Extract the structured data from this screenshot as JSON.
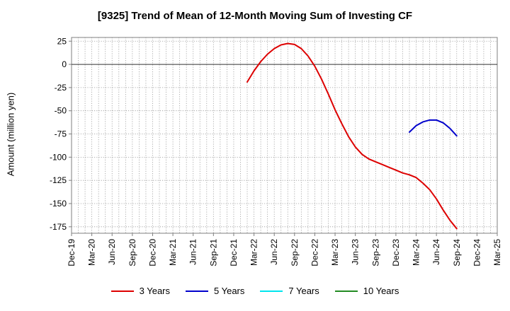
{
  "chart_data": {
    "type": "line",
    "title": "[9325]  Trend of Mean of 12-Month Moving Sum of Investing CF",
    "ylabel": "Amount (million yen)",
    "xlabel": "",
    "ylim": [
      -182,
      29
    ],
    "y_ticks": [
      25,
      0,
      -25,
      -50,
      -75,
      -100,
      -125,
      -150,
      -175
    ],
    "x_tick_labels": [
      "Dec-19",
      "Mar-20",
      "Jun-20",
      "Sep-20",
      "Dec-20",
      "Mar-21",
      "Jun-21",
      "Sep-21",
      "Dec-21",
      "Mar-22",
      "Jun-22",
      "Sep-22",
      "Dec-22",
      "Mar-23",
      "Jun-23",
      "Sep-23",
      "Dec-23",
      "Mar-24",
      "Jun-24",
      "Sep-24",
      "Dec-24",
      "Mar-25"
    ],
    "grid": true,
    "legend_position": "bottom",
    "series": [
      {
        "name": "3 Years",
        "color": "#dd0000",
        "points": [
          [
            "Feb-22",
            -19
          ],
          [
            "Mar-22",
            -7
          ],
          [
            "Apr-22",
            3
          ],
          [
            "May-22",
            11
          ],
          [
            "Jun-22",
            17
          ],
          [
            "Jul-22",
            21
          ],
          [
            "Aug-22",
            22.5
          ],
          [
            "Sep-22",
            21.5
          ],
          [
            "Oct-22",
            17
          ],
          [
            "Nov-22",
            9
          ],
          [
            "Dec-22",
            -2
          ],
          [
            "Jan-23",
            -16
          ],
          [
            "Feb-23",
            -32
          ],
          [
            "Mar-23",
            -49
          ],
          [
            "Apr-23",
            -64
          ],
          [
            "May-23",
            -78
          ],
          [
            "Jun-23",
            -89
          ],
          [
            "Jul-23",
            -97
          ],
          [
            "Aug-23",
            -102
          ],
          [
            "Sep-23",
            -105
          ],
          [
            "Oct-23",
            -108
          ],
          [
            "Nov-23",
            -111
          ],
          [
            "Dec-23",
            -114
          ],
          [
            "Jan-24",
            -117
          ],
          [
            "Feb-24",
            -119
          ],
          [
            "Mar-24",
            -122
          ],
          [
            "Apr-24",
            -128
          ],
          [
            "May-24",
            -135
          ],
          [
            "Jun-24",
            -145
          ],
          [
            "Jul-24",
            -157
          ],
          [
            "Aug-24",
            -168
          ],
          [
            "Sep-24",
            -177
          ]
        ]
      },
      {
        "name": "5 Years",
        "color": "#0000cc",
        "points": [
          [
            "Feb-24",
            -73
          ],
          [
            "Mar-24",
            -66
          ],
          [
            "Apr-24",
            -62
          ],
          [
            "May-24",
            -60
          ],
          [
            "Jun-24",
            -60
          ],
          [
            "Jul-24",
            -63
          ],
          [
            "Aug-24",
            -69
          ],
          [
            "Sep-24",
            -77
          ]
        ]
      },
      {
        "name": "7 Years",
        "color": "#00e5ee",
        "points": []
      },
      {
        "name": "10 Years",
        "color": "#228b22",
        "points": []
      }
    ]
  }
}
